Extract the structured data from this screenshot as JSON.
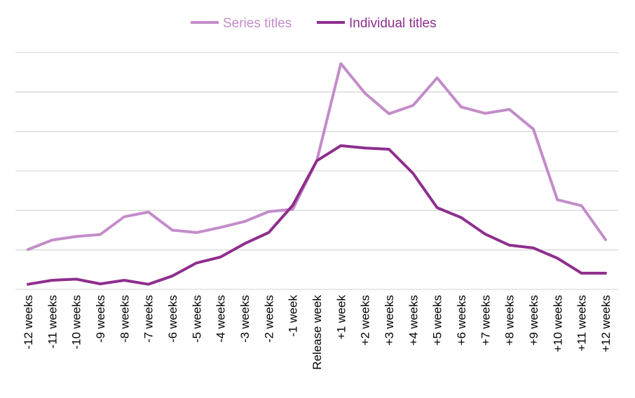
{
  "chart_data": {
    "type": "line",
    "title": "",
    "xlabel": "",
    "ylabel": "",
    "grid": true,
    "legend_position": "top-center",
    "ylim": [
      0,
      6
    ],
    "y_gridlines": [
      0,
      1,
      2,
      3,
      4,
      5,
      6
    ],
    "categories": [
      "-12 weeks",
      "-11 weeks",
      "-10 weeks",
      "-9 weeks",
      "-8 weeks",
      "-7 weeks",
      "-6 weeks",
      "-5 weeks",
      "-4 weeks",
      "-3 weeks",
      "-2 weeks",
      "-1 week",
      "Release week",
      "+1 week",
      "+2 weeks",
      "+3 weeks",
      "+4 weeks",
      "+5 weeks",
      "+6 weeks",
      "+7 weeks",
      "+8 weeks",
      "+9 weeks",
      "+10 weeks",
      "+11 weeks",
      "+12 weeks"
    ],
    "series": [
      {
        "name": "Series titles",
        "color": "#c38cc9",
        "values": [
          1.01,
          1.25,
          1.34,
          1.39,
          1.84,
          1.96,
          1.5,
          1.44,
          1.57,
          1.72,
          1.97,
          2.03,
          3.26,
          5.72,
          4.97,
          4.45,
          4.66,
          5.36,
          4.62,
          4.46,
          4.56,
          4.06,
          2.27,
          2.12,
          1.26
        ]
      },
      {
        "name": "Individual titles",
        "color": "#8e2e8e",
        "values": [
          0.13,
          0.23,
          0.26,
          0.14,
          0.23,
          0.13,
          0.34,
          0.67,
          0.82,
          1.16,
          1.44,
          2.13,
          3.26,
          3.64,
          3.58,
          3.55,
          2.94,
          2.07,
          1.82,
          1.4,
          1.12,
          1.05,
          0.79,
          0.41,
          0.41
        ]
      }
    ]
  }
}
